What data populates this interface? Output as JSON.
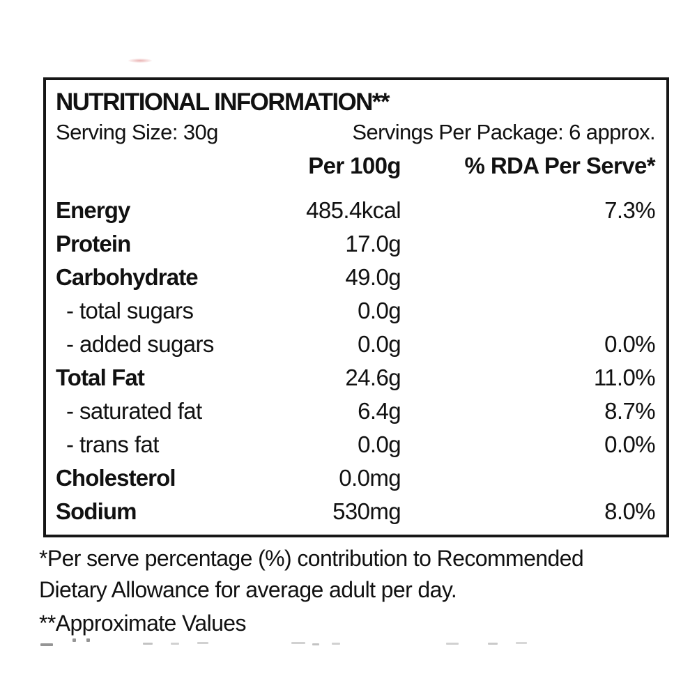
{
  "colors": {
    "background": "#ffffff",
    "text": "#111111",
    "border": "#161616",
    "artifact_pink": "#d66e6e"
  },
  "label": {
    "title": "NUTRITIONAL INFORMATION**",
    "serving_size": "Serving Size: 30g",
    "servings_per_package": "Servings Per Package: 6 approx.",
    "column_headers": {
      "per_100g": "Per 100g",
      "rda_per_serve": "% RDA Per Serve*"
    },
    "rows": [
      {
        "name": "Energy",
        "per100g": "485.4kcal",
        "rda": "7.3%"
      },
      {
        "name": "Protein",
        "per100g": "17.0g",
        "rda": ""
      },
      {
        "name": "Carbohydrate",
        "per100g": "49.0g",
        "rda": ""
      },
      {
        "name": "- total sugars",
        "per100g": "0.0g",
        "rda": ""
      },
      {
        "name": "- added sugars",
        "per100g": "0.0g",
        "rda": "0.0%"
      },
      {
        "name": "Total Fat",
        "per100g": "24.6g",
        "rda": "11.0%"
      },
      {
        "name": "- saturated fat",
        "per100g": "6.4g",
        "rda": "8.7%"
      },
      {
        "name": "- trans fat",
        "per100g": "0.0g",
        "rda": "0.0%"
      },
      {
        "name": "Cholesterol",
        "per100g": "0.0mg",
        "rda": ""
      },
      {
        "name": "Sodium",
        "per100g": "530mg",
        "rda": "8.0%"
      }
    ],
    "footnotes": {
      "line1": "*Per serve percentage (%) contribution to Recommended",
      "line2": "Dietary Allowance for average adult per day.",
      "line3": "**Approximate Values"
    }
  }
}
